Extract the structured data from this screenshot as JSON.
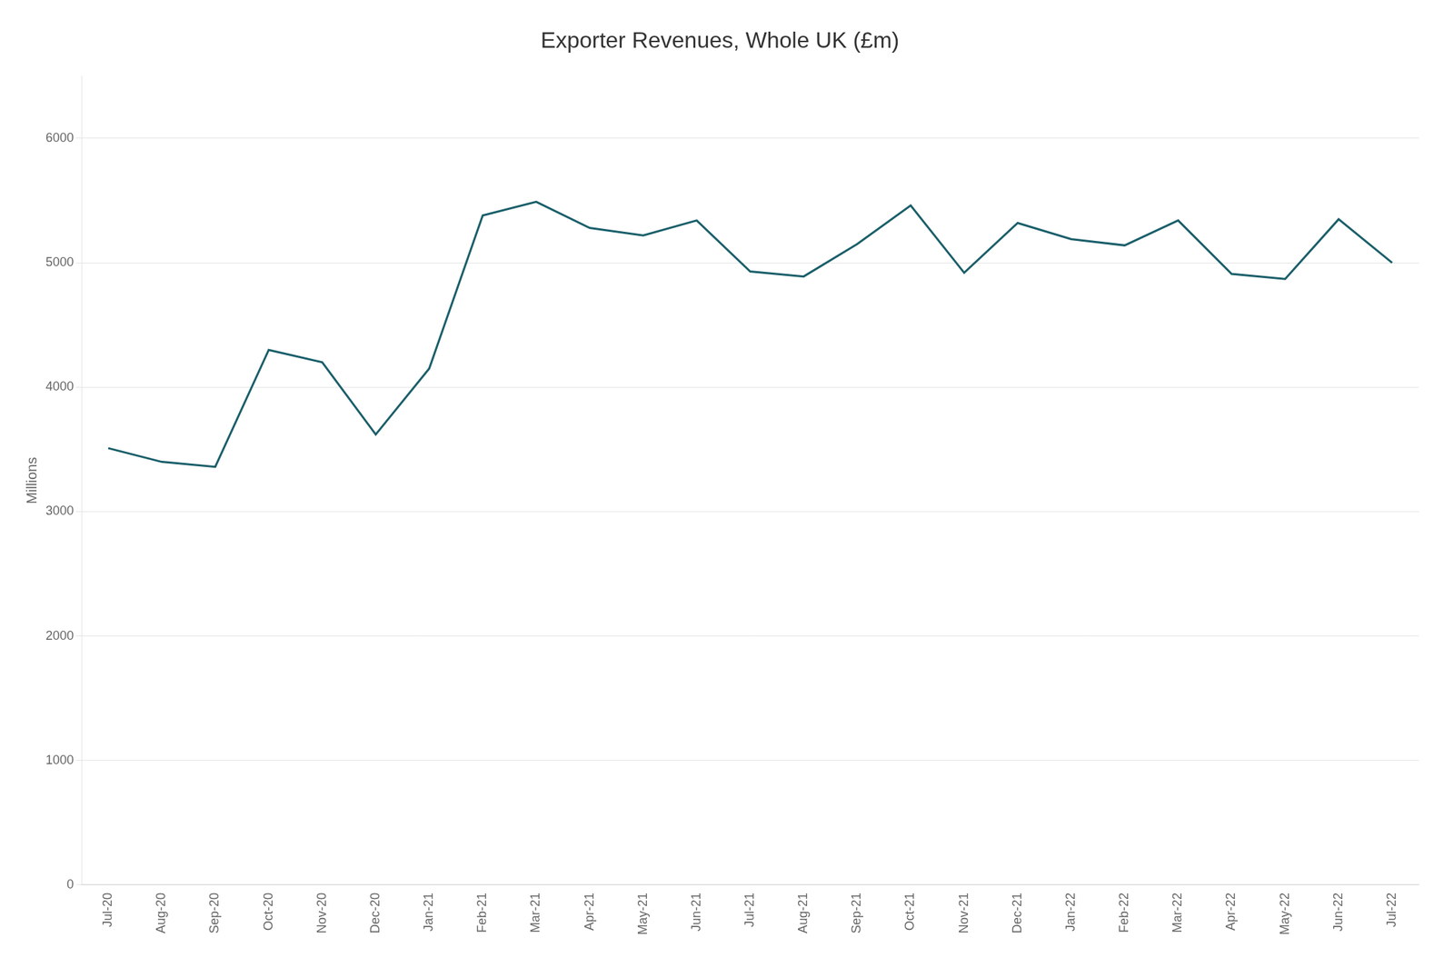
{
  "chart_data": {
    "type": "line",
    "title": "Exporter Revenues, Whole UK (£m)",
    "y_label": "Millions",
    "categories": [
      "Jul-20",
      "Aug-20",
      "Sep-20",
      "Oct-20",
      "Nov-20",
      "Dec-20",
      "Jan-21",
      "Feb-21",
      "Mar-21",
      "Apr-21",
      "May-21",
      "Jun-21",
      "Jul-21",
      "Aug-21",
      "Sep-21",
      "Oct-21",
      "Nov-21",
      "Dec-21",
      "Jan-22",
      "Feb-22",
      "Mar-22",
      "Apr-22",
      "May-22",
      "Jun-22",
      "Jul-22"
    ],
    "values": [
      3510,
      3400,
      3360,
      4300,
      4200,
      3620,
      4150,
      5380,
      5490,
      5280,
      5220,
      5340,
      4930,
      4890,
      5150,
      5460,
      4920,
      5320,
      5190,
      5140,
      5340,
      4910,
      4870,
      5350,
      5000
    ],
    "color": "#1a5f6a",
    "ylim": [
      0,
      6500
    ],
    "yticks": [
      0,
      1000,
      2000,
      3000,
      4000,
      5000,
      6000
    ],
    "grid": true
  }
}
